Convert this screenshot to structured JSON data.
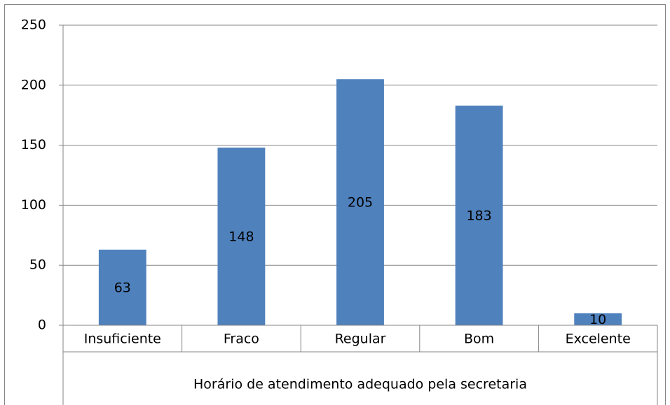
{
  "chart_data": {
    "type": "bar",
    "x_label": "Horário de atendimento adequado pela secretaria",
    "categories": [
      "Insuficiente",
      "Fraco",
      "Regular",
      "Bom",
      "Excelente"
    ],
    "values": [
      63,
      148,
      205,
      183,
      10
    ],
    "color": "#4f81bd",
    "ylim": [
      0,
      250
    ],
    "yticks": [
      0,
      50,
      100,
      150,
      200,
      250
    ],
    "grid": true,
    "data_labels": true
  }
}
